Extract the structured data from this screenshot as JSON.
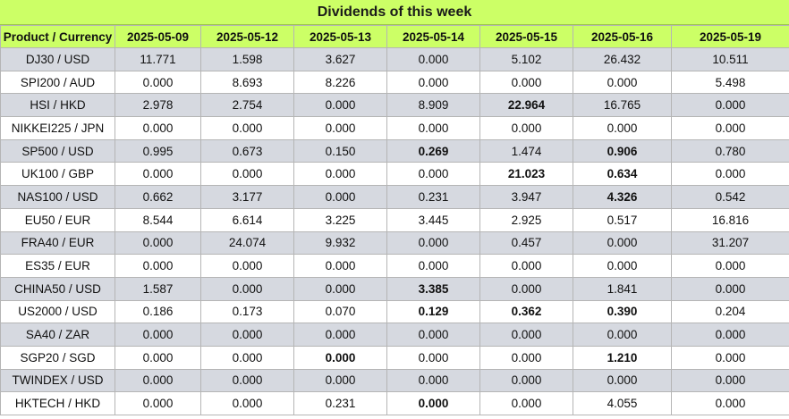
{
  "title": "Dividends of this week",
  "header": {
    "product": "Product / Currency",
    "dates": [
      "2025-05-09",
      "2025-05-12",
      "2025-05-13",
      "2025-05-14",
      "2025-05-15",
      "2025-05-16",
      "2025-05-19"
    ]
  },
  "rows": [
    {
      "product": "DJ30 / USD",
      "values": [
        "11.771",
        "1.598",
        "3.627",
        "0.000",
        "5.102",
        "26.432",
        "10.511"
      ],
      "bold": [
        false,
        false,
        false,
        false,
        false,
        false,
        false
      ]
    },
    {
      "product": "SPI200 / AUD",
      "values": [
        "0.000",
        "8.693",
        "8.226",
        "0.000",
        "0.000",
        "0.000",
        "5.498"
      ],
      "bold": [
        false,
        false,
        false,
        false,
        false,
        false,
        false
      ]
    },
    {
      "product": "HSI / HKD",
      "values": [
        "2.978",
        "2.754",
        "0.000",
        "8.909",
        "22.964",
        "16.765",
        "0.000"
      ],
      "bold": [
        false,
        false,
        false,
        false,
        true,
        false,
        false
      ]
    },
    {
      "product": "NIKKEI225 / JPN",
      "values": [
        "0.000",
        "0.000",
        "0.000",
        "0.000",
        "0.000",
        "0.000",
        "0.000"
      ],
      "bold": [
        false,
        false,
        false,
        false,
        false,
        false,
        false
      ]
    },
    {
      "product": "SP500 / USD",
      "values": [
        "0.995",
        "0.673",
        "0.150",
        "0.269",
        "1.474",
        "0.906",
        "0.780"
      ],
      "bold": [
        false,
        false,
        false,
        true,
        false,
        true,
        false
      ]
    },
    {
      "product": "UK100 / GBP",
      "values": [
        "0.000",
        "0.000",
        "0.000",
        "0.000",
        "21.023",
        "0.634",
        "0.000"
      ],
      "bold": [
        false,
        false,
        false,
        false,
        true,
        true,
        false
      ]
    },
    {
      "product": "NAS100 / USD",
      "values": [
        "0.662",
        "3.177",
        "0.000",
        "0.231",
        "3.947",
        "4.326",
        "0.542"
      ],
      "bold": [
        false,
        false,
        false,
        false,
        false,
        true,
        false
      ]
    },
    {
      "product": "EU50 / EUR",
      "values": [
        "8.544",
        "6.614",
        "3.225",
        "3.445",
        "2.925",
        "0.517",
        "16.816"
      ],
      "bold": [
        false,
        false,
        false,
        false,
        false,
        false,
        false
      ]
    },
    {
      "product": "FRA40 / EUR",
      "values": [
        "0.000",
        "24.074",
        "9.932",
        "0.000",
        "0.457",
        "0.000",
        "31.207"
      ],
      "bold": [
        false,
        false,
        false,
        false,
        false,
        false,
        false
      ]
    },
    {
      "product": "ES35 / EUR",
      "values": [
        "0.000",
        "0.000",
        "0.000",
        "0.000",
        "0.000",
        "0.000",
        "0.000"
      ],
      "bold": [
        false,
        false,
        false,
        false,
        false,
        false,
        false
      ]
    },
    {
      "product": "CHINA50 / USD",
      "values": [
        "1.587",
        "0.000",
        "0.000",
        "3.385",
        "0.000",
        "1.841",
        "0.000"
      ],
      "bold": [
        false,
        false,
        false,
        true,
        false,
        false,
        false
      ]
    },
    {
      "product": "US2000 / USD",
      "values": [
        "0.186",
        "0.173",
        "0.070",
        "0.129",
        "0.362",
        "0.390",
        "0.204"
      ],
      "bold": [
        false,
        false,
        false,
        true,
        true,
        true,
        false
      ]
    },
    {
      "product": "SA40 / ZAR",
      "values": [
        "0.000",
        "0.000",
        "0.000",
        "0.000",
        "0.000",
        "0.000",
        "0.000"
      ],
      "bold": [
        false,
        false,
        false,
        false,
        false,
        false,
        false
      ]
    },
    {
      "product": "SGP20 / SGD",
      "values": [
        "0.000",
        "0.000",
        "0.000",
        "0.000",
        "0.000",
        "1.210",
        "0.000"
      ],
      "bold": [
        false,
        false,
        true,
        false,
        false,
        true,
        false
      ]
    },
    {
      "product": "TWINDEX / USD",
      "values": [
        "0.000",
        "0.000",
        "0.000",
        "0.000",
        "0.000",
        "0.000",
        "0.000"
      ],
      "bold": [
        false,
        false,
        false,
        false,
        false,
        false,
        false
      ]
    },
    {
      "product": "HKTECH / HKD",
      "values": [
        "0.000",
        "0.000",
        "0.231",
        "0.000",
        "0.000",
        "4.055",
        "0.000"
      ],
      "bold": [
        false,
        false,
        false,
        true,
        false,
        false,
        false
      ]
    }
  ]
}
